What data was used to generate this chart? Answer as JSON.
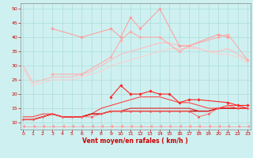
{
  "x": [
    0,
    1,
    2,
    3,
    4,
    5,
    6,
    7,
    8,
    9,
    10,
    11,
    12,
    13,
    14,
    15,
    16,
    17,
    18,
    19,
    20,
    21,
    22,
    23
  ],
  "series": [
    {
      "name": "rafales_max",
      "color": "#ff9999",
      "linewidth": 0.7,
      "marker": "D",
      "markersize": 1.8,
      "values": [
        null,
        null,
        null,
        43,
        null,
        null,
        40,
        null,
        null,
        43,
        40,
        47,
        43,
        null,
        50,
        null,
        37,
        37,
        null,
        null,
        41,
        40,
        null,
        null
      ]
    },
    {
      "name": "rafales_mean",
      "color": "#ffaaaa",
      "linewidth": 0.8,
      "marker": "D",
      "markersize": 1.8,
      "values": [
        null,
        null,
        null,
        27,
        null,
        null,
        27,
        null,
        null,
        33,
        39,
        42,
        40,
        null,
        40,
        null,
        35,
        37,
        null,
        null,
        40,
        41,
        null,
        32
      ]
    },
    {
      "name": "smooth_high",
      "color": "#ffbbbb",
      "linewidth": 0.8,
      "marker": "none",
      "markersize": 0,
      "values": [
        30,
        24,
        25,
        26,
        26,
        26,
        27,
        28,
        30,
        32,
        34,
        35,
        36,
        37,
        38,
        38,
        37,
        37,
        36,
        35,
        35,
        36,
        34,
        32
      ]
    },
    {
      "name": "smooth_mid",
      "color": "#ffcccc",
      "linewidth": 0.7,
      "marker": "none",
      "markersize": 0,
      "values": [
        29,
        23,
        24,
        25,
        25,
        25,
        26,
        27,
        28,
        30,
        31,
        32,
        33,
        34,
        35,
        36,
        36,
        36,
        36,
        35,
        34,
        34,
        33,
        31
      ]
    },
    {
      "name": "vent_max",
      "color": "#ff2222",
      "linewidth": 0.8,
      "marker": "D",
      "markersize": 1.8,
      "values": [
        null,
        null,
        null,
        null,
        null,
        null,
        null,
        null,
        null,
        19,
        23,
        20,
        20,
        21,
        20,
        20,
        17,
        18,
        18,
        null,
        null,
        17,
        16,
        16
      ]
    },
    {
      "name": "vent_smooth",
      "color": "#ff4444",
      "linewidth": 0.8,
      "marker": "none",
      "markersize": 0,
      "values": [
        12,
        12,
        13,
        13,
        12,
        12,
        12,
        13,
        15,
        16,
        17,
        18,
        19,
        19,
        19,
        18,
        17,
        17,
        16,
        15,
        15,
        16,
        16,
        15
      ]
    },
    {
      "name": "vent_flat1",
      "color": "#cc0000",
      "linewidth": 1.0,
      "marker": "none",
      "markersize": 0,
      "values": [
        11,
        11,
        12,
        13,
        12,
        12,
        12,
        13,
        13,
        14,
        14,
        14,
        14,
        14,
        14,
        14,
        14,
        14,
        14,
        14,
        15,
        15,
        15,
        15
      ]
    },
    {
      "name": "vent_flat2",
      "color": "#dd2222",
      "linewidth": 0.8,
      "marker": "none",
      "markersize": 0,
      "values": [
        11,
        11,
        12,
        13,
        12,
        12,
        12,
        13,
        13,
        14,
        14,
        15,
        15,
        15,
        15,
        15,
        15,
        15,
        14,
        14,
        15,
        15,
        15,
        15
      ]
    },
    {
      "name": "vent_min_dots",
      "color": "#ff5555",
      "linewidth": 0.6,
      "marker": "D",
      "markersize": 1.5,
      "values": [
        11,
        11,
        12,
        13,
        12,
        12,
        12,
        12,
        13,
        14,
        14,
        14,
        14,
        14,
        14,
        14,
        14,
        14,
        12,
        13,
        15,
        16,
        15,
        15
      ]
    },
    {
      "name": "bottom_arrows",
      "color": "#ff9999",
      "linewidth": 0.5,
      "marker": 4,
      "markersize": 2.5,
      "values": [
        8.5,
        8.5,
        8.5,
        8.5,
        8.5,
        8.5,
        8.5,
        8.5,
        8.5,
        8.5,
        8.5,
        8.5,
        8.5,
        8.5,
        8.5,
        8.5,
        8.5,
        8.5,
        8.5,
        8.5,
        8.5,
        8.5,
        8.5,
        8.5
      ]
    }
  ],
  "xlabel": "Vent moyen/en rafales ( km/h )",
  "xlim": [
    -0.3,
    23.3
  ],
  "ylim": [
    7.5,
    52
  ],
  "yticks": [
    10,
    15,
    20,
    25,
    30,
    35,
    40,
    45,
    50
  ],
  "xticks": [
    0,
    1,
    2,
    3,
    4,
    5,
    6,
    7,
    8,
    9,
    10,
    11,
    12,
    13,
    14,
    15,
    16,
    17,
    18,
    19,
    20,
    21,
    22,
    23
  ],
  "background_color": "#cff0f0",
  "grid_color": "#aadddd",
  "tick_color": "#cc0000",
  "label_color": "#cc0000",
  "axis_color": "#888888"
}
